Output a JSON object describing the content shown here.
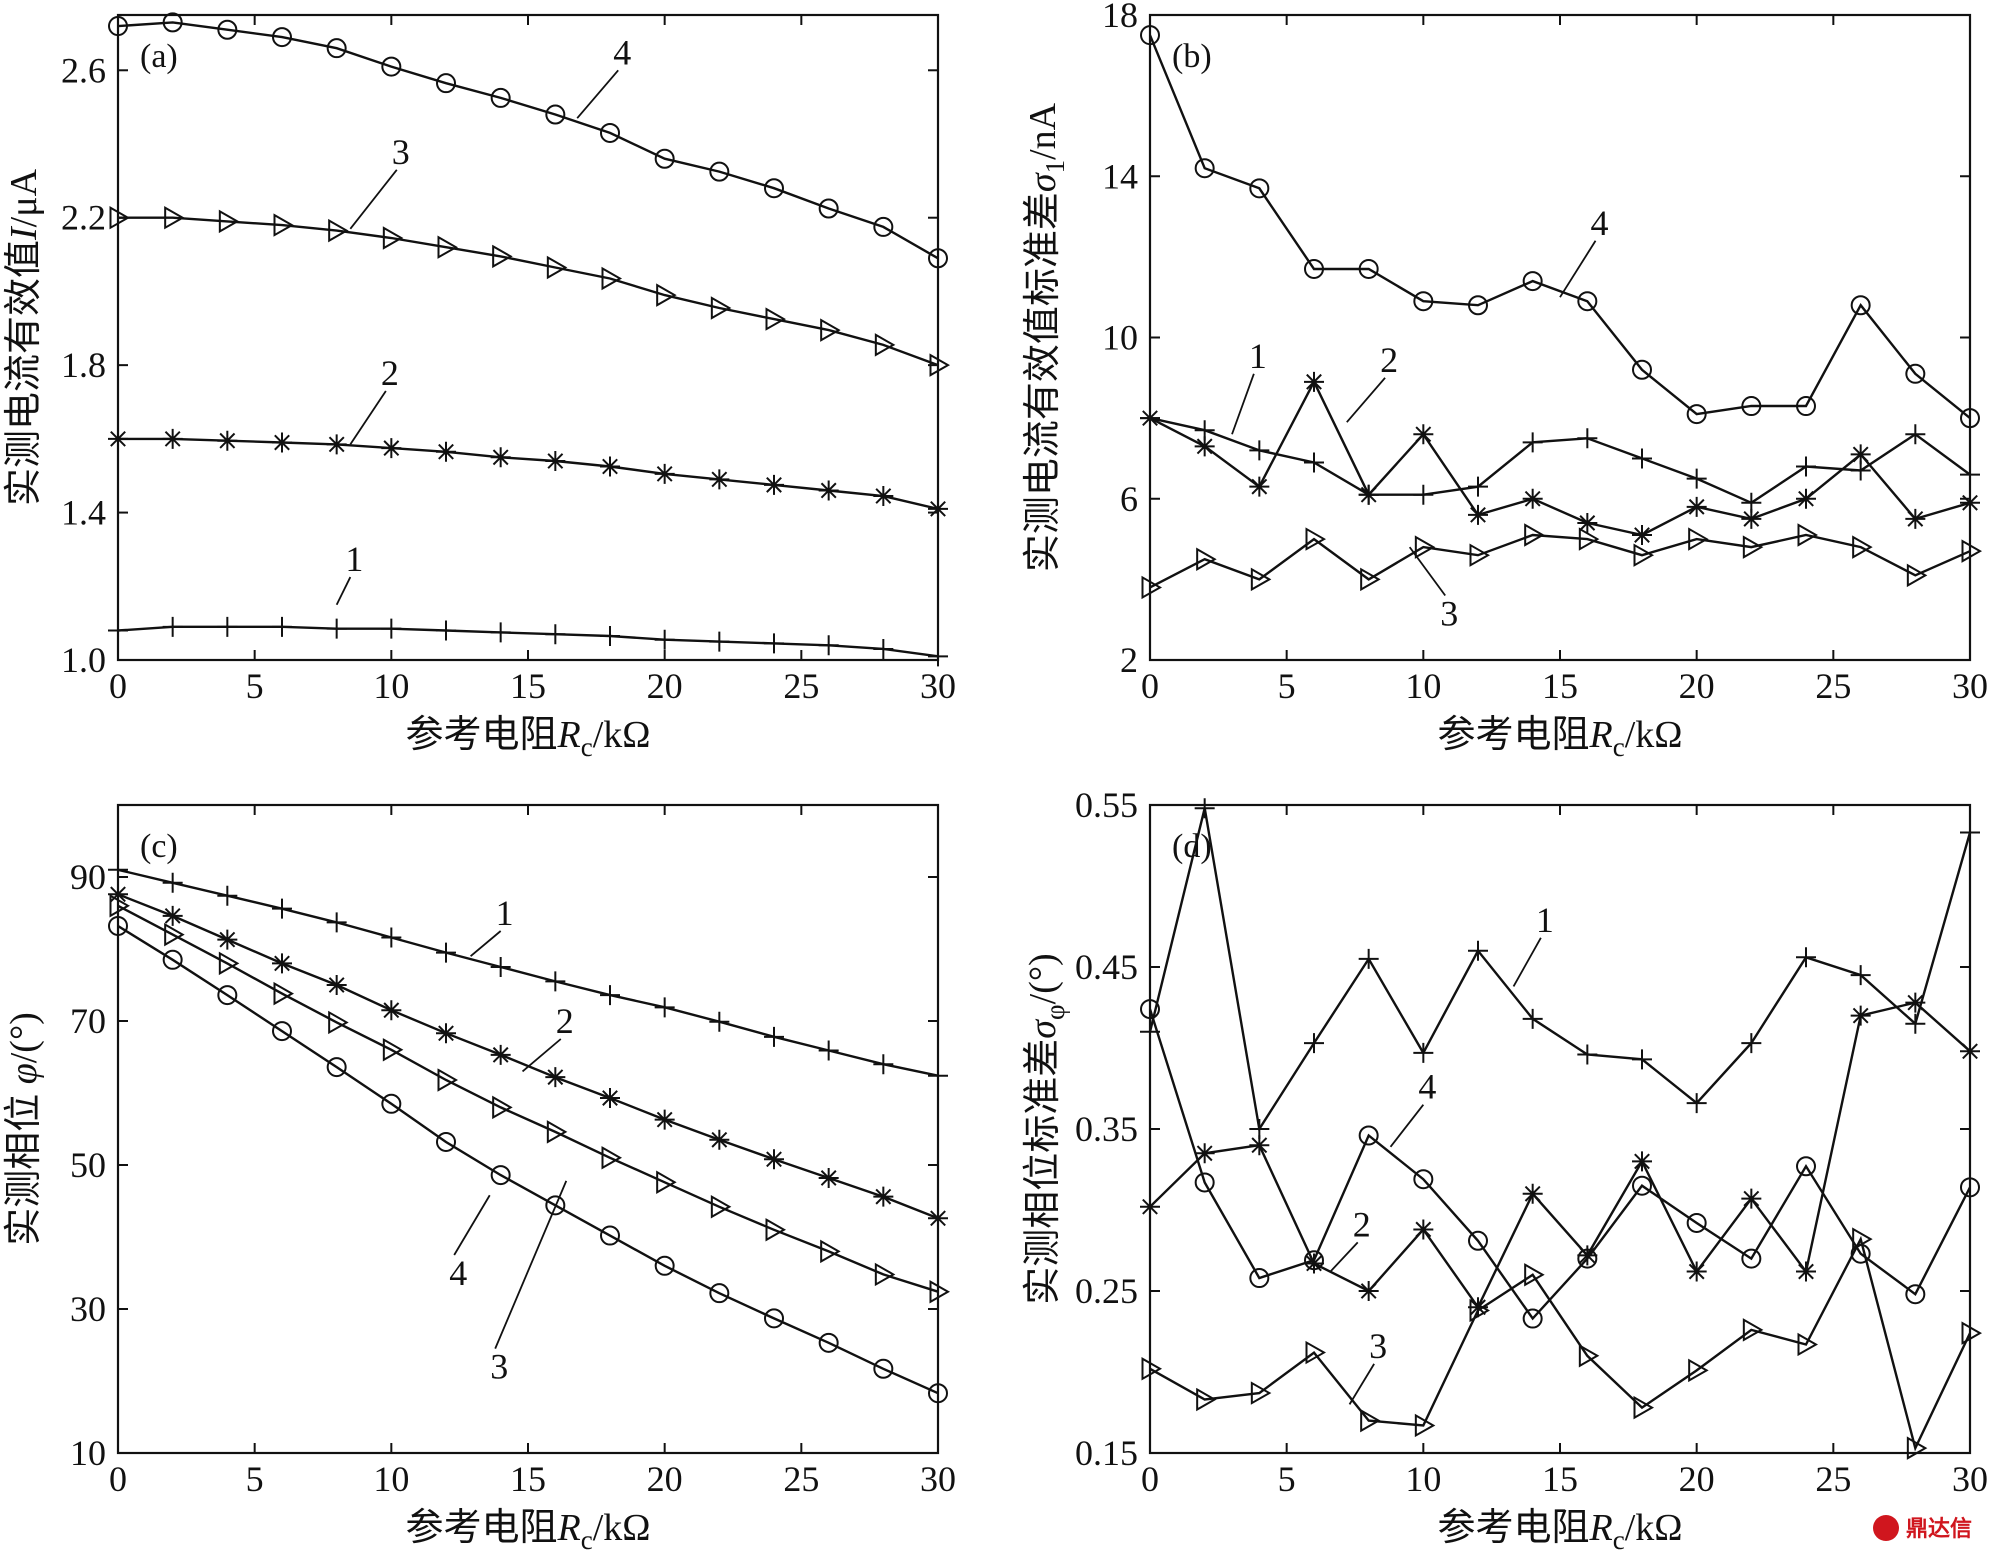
{
  "chart_data": [
    {
      "id": "a",
      "panel_tag": "(a)",
      "type": "line",
      "xlabel": "参考电阻R_c/kΩ",
      "xlabel_main": "参考电阻",
      "xlabel_sym": "R",
      "xlabel_sub": "c",
      "xlabel_unit": "/kΩ",
      "ylabel": "实测电流有效值I/μA",
      "ylabel_main": "实测电流有效值",
      "ylabel_sym": "I",
      "ylabel_sub": "",
      "ylabel_unit": "/μA",
      "xlim": [
        0,
        30
      ],
      "ylim": [
        1.0,
        2.75
      ],
      "xticks": [
        0,
        5,
        10,
        15,
        20,
        25,
        30
      ],
      "yticks": [
        1.0,
        1.4,
        1.8,
        2.2,
        2.6
      ],
      "ytick_labels": [
        "1.0",
        "1.4",
        "1.8",
        "2.2",
        "2.6"
      ],
      "x": [
        0,
        2,
        4,
        6,
        8,
        10,
        12,
        14,
        16,
        18,
        20,
        22,
        24,
        26,
        28,
        30
      ],
      "series": [
        {
          "name": "1",
          "marker": "plus",
          "values": [
            1.08,
            1.09,
            1.09,
            1.09,
            1.085,
            1.085,
            1.08,
            1.075,
            1.07,
            1.065,
            1.055,
            1.05,
            1.045,
            1.04,
            1.03,
            1.01
          ]
        },
        {
          "name": "2",
          "marker": "star",
          "values": [
            1.6,
            1.6,
            1.595,
            1.59,
            1.585,
            1.575,
            1.565,
            1.55,
            1.54,
            1.525,
            1.505,
            1.49,
            1.475,
            1.46,
            1.445,
            1.41
          ]
        },
        {
          "name": "3",
          "marker": "triangle",
          "values": [
            2.2,
            2.2,
            2.19,
            2.18,
            2.165,
            2.145,
            2.12,
            2.095,
            2.065,
            2.035,
            1.99,
            1.955,
            1.925,
            1.895,
            1.855,
            1.8
          ]
        },
        {
          "name": "4",
          "marker": "circle",
          "values": [
            2.72,
            2.73,
            2.71,
            2.69,
            2.66,
            2.61,
            2.565,
            2.525,
            2.48,
            2.43,
            2.36,
            2.325,
            2.28,
            2.225,
            2.175,
            2.09
          ]
        }
      ],
      "series_labels": [
        {
          "name": "1",
          "text": "1",
          "x": 8.0,
          "y": 1.15,
          "lx": 8.5,
          "ly": 1.225
        },
        {
          "name": "2",
          "text": "2",
          "x": 8.5,
          "y": 1.585,
          "lx": 9.8,
          "ly": 1.73
        },
        {
          "name": "3",
          "text": "3",
          "x": 8.5,
          "y": 2.17,
          "lx": 10.2,
          "ly": 2.33
        },
        {
          "name": "4",
          "text": "4",
          "x": 16.8,
          "y": 2.47,
          "lx": 18.3,
          "ly": 2.6
        }
      ]
    },
    {
      "id": "b",
      "panel_tag": "(b)",
      "type": "line",
      "xlabel": "参考电阻R_c/kΩ",
      "xlabel_main": "参考电阻",
      "xlabel_sym": "R",
      "xlabel_sub": "c",
      "xlabel_unit": "/kΩ",
      "ylabel": "实测电流有效值标准差σ_1/nA",
      "ylabel_main": "实测电流有效值标准差",
      "ylabel_sym": "σ",
      "ylabel_sub": "1",
      "ylabel_unit": "/nA",
      "xlim": [
        0,
        30
      ],
      "ylim": [
        2,
        18
      ],
      "xticks": [
        0,
        5,
        10,
        15,
        20,
        25,
        30
      ],
      "yticks": [
        2,
        6,
        10,
        14,
        18
      ],
      "ytick_labels": [
        "2",
        "6",
        "10",
        "14",
        "18"
      ],
      "x": [
        0,
        2,
        4,
        6,
        8,
        10,
        12,
        14,
        16,
        18,
        20,
        22,
        24,
        26,
        28,
        30
      ],
      "series": [
        {
          "name": "1",
          "marker": "plus",
          "values": [
            8.0,
            7.7,
            7.2,
            6.9,
            6.1,
            6.1,
            6.3,
            7.4,
            7.5,
            7.0,
            6.5,
            5.9,
            6.8,
            6.7,
            7.6,
            6.6
          ]
        },
        {
          "name": "2",
          "marker": "star",
          "values": [
            8.0,
            7.3,
            6.3,
            8.9,
            6.1,
            7.6,
            5.6,
            6.0,
            5.4,
            5.1,
            5.8,
            5.5,
            6.0,
            7.1,
            5.5,
            5.9
          ]
        },
        {
          "name": "3",
          "marker": "triangle",
          "values": [
            3.8,
            4.5,
            4.0,
            5.0,
            4.0,
            4.8,
            4.6,
            5.1,
            5.0,
            4.6,
            5.0,
            4.8,
            5.1,
            4.8,
            4.1,
            4.7
          ]
        },
        {
          "name": "4",
          "marker": "circle",
          "values": [
            17.5,
            14.2,
            13.7,
            11.7,
            11.7,
            10.9,
            10.8,
            11.4,
            10.9,
            9.2,
            8.1,
            8.3,
            8.3,
            10.8,
            9.1,
            8.0
          ]
        }
      ],
      "series_labels": [
        {
          "name": "1",
          "text": "1",
          "x": 3.0,
          "y": 7.6,
          "lx": 3.8,
          "ly": 9.1
        },
        {
          "name": "2",
          "text": "2",
          "x": 7.2,
          "y": 7.9,
          "lx": 8.6,
          "ly": 9.0
        },
        {
          "name": "3",
          "text": "3",
          "x": 9.5,
          "y": 4.8,
          "lx": 10.8,
          "ly": 3.6
        },
        {
          "name": "4",
          "text": "4",
          "x": 15.0,
          "y": 11.0,
          "lx": 16.3,
          "ly": 12.4
        }
      ]
    },
    {
      "id": "c",
      "panel_tag": "(c)",
      "type": "line",
      "xlabel": "参考电阻R_c/kΩ",
      "xlabel_main": "参考电阻",
      "xlabel_sym": "R",
      "xlabel_sub": "c",
      "xlabel_unit": "/kΩ",
      "ylabel": "实测相位 φ/(°)",
      "ylabel_main": "实测相位 ",
      "ylabel_sym": "φ",
      "ylabel_sub": "",
      "ylabel_unit": "/(°)",
      "xlim": [
        0,
        30
      ],
      "ylim": [
        10,
        100
      ],
      "xticks": [
        0,
        5,
        10,
        15,
        20,
        25,
        30
      ],
      "yticks": [
        10,
        30,
        50,
        70,
        90
      ],
      "ytick_labels": [
        "10",
        "30",
        "50",
        "70",
        "90"
      ],
      "x": [
        0,
        2,
        4,
        6,
        8,
        10,
        12,
        14,
        16,
        18,
        20,
        22,
        24,
        26,
        28,
        30
      ],
      "series": [
        {
          "name": "1",
          "marker": "plus",
          "values": [
            91.0,
            89.2,
            87.4,
            85.6,
            83.7,
            81.6,
            79.5,
            77.5,
            75.5,
            73.6,
            71.9,
            69.9,
            67.8,
            65.9,
            64.0,
            62.4
          ]
        },
        {
          "name": "2",
          "marker": "star",
          "values": [
            87.6,
            84.6,
            81.3,
            78.0,
            75.0,
            71.5,
            68.3,
            65.3,
            62.2,
            59.3,
            56.3,
            53.5,
            50.8,
            48.2,
            45.6,
            42.6
          ]
        },
        {
          "name": "3",
          "marker": "triangle",
          "values": [
            86.0,
            82.0,
            78.0,
            73.8,
            69.8,
            66.0,
            61.8,
            58.0,
            54.6,
            51.0,
            47.6,
            44.2,
            41.0,
            38.0,
            34.8,
            32.4
          ]
        },
        {
          "name": "4",
          "marker": "circle",
          "values": [
            83.2,
            78.5,
            73.6,
            68.6,
            63.6,
            58.5,
            53.2,
            48.6,
            44.4,
            40.2,
            36.0,
            32.2,
            28.7,
            25.3,
            21.7,
            18.3
          ]
        }
      ],
      "series_labels": [
        {
          "name": "1",
          "text": "1",
          "x": 12.9,
          "y": 79.0,
          "lx": 14.0,
          "ly": 82.5
        },
        {
          "name": "2",
          "text": "2",
          "x": 14.8,
          "y": 63.0,
          "lx": 16.2,
          "ly": 67.5
        },
        {
          "name": "3",
          "text": "3",
          "x": 16.4,
          "y": 47.8,
          "lx": 13.8,
          "ly": 24.5
        },
        {
          "name": "4",
          "text": "4",
          "x": 13.6,
          "y": 45.8,
          "lx": 12.3,
          "ly": 37.5
        }
      ]
    },
    {
      "id": "d",
      "panel_tag": "(d)",
      "type": "line",
      "xlabel": "参考电阻R_c/kΩ",
      "xlabel_main": "参考电阻",
      "xlabel_sym": "R",
      "xlabel_sub": "c",
      "xlabel_unit": "/kΩ",
      "ylabel": "实测相位标准差σ_φ/(°)",
      "ylabel_main": "实测相位标准差",
      "ylabel_sym": "σ",
      "ylabel_sub": "φ",
      "ylabel_unit": "/(°)",
      "xlim": [
        0,
        30
      ],
      "ylim": [
        0.15,
        0.55
      ],
      "xticks": [
        0,
        5,
        10,
        15,
        20,
        25,
        30
      ],
      "yticks": [
        0.15,
        0.25,
        0.35,
        0.45,
        0.55
      ],
      "ytick_labels": [
        "0.15",
        "0.25",
        "0.35",
        "0.45",
        "0.55"
      ],
      "x": [
        0,
        2,
        4,
        6,
        8,
        10,
        12,
        14,
        16,
        18,
        20,
        22,
        24,
        26,
        28,
        30
      ],
      "series": [
        {
          "name": "1",
          "marker": "plus",
          "values": [
            0.41,
            0.548,
            0.35,
            0.403,
            0.455,
            0.397,
            0.46,
            0.418,
            0.396,
            0.393,
            0.366,
            0.403,
            0.456,
            0.445,
            0.415,
            0.533
          ]
        },
        {
          "name": "2",
          "marker": "star",
          "values": [
            0.302,
            0.335,
            0.34,
            0.267,
            0.25,
            0.288,
            0.24,
            0.31,
            0.272,
            0.33,
            0.262,
            0.307,
            0.262,
            0.42,
            0.428,
            0.398
          ]
        },
        {
          "name": "3",
          "marker": "triangle",
          "values": [
            0.202,
            0.183,
            0.187,
            0.212,
            0.17,
            0.167,
            0.238,
            0.26,
            0.21,
            0.178,
            0.201,
            0.226,
            0.217,
            0.282,
            0.153,
            0.224
          ]
        },
        {
          "name": "4",
          "marker": "circle",
          "values": [
            0.424,
            0.317,
            0.258,
            0.269,
            0.346,
            0.319,
            0.281,
            0.233,
            0.27,
            0.315,
            0.292,
            0.27,
            0.327,
            0.273,
            0.248,
            0.314
          ]
        }
      ],
      "series_labels": [
        {
          "name": "1",
          "text": "1",
          "x": 13.3,
          "y": 0.438,
          "lx": 14.3,
          "ly": 0.468
        },
        {
          "name": "2",
          "text": "2",
          "x": 6.6,
          "y": 0.262,
          "lx": 7.6,
          "ly": 0.28
        },
        {
          "name": "3",
          "text": "3",
          "x": 7.3,
          "y": 0.18,
          "lx": 8.2,
          "ly": 0.205
        },
        {
          "name": "4",
          "text": "4",
          "x": 8.8,
          "y": 0.339,
          "lx": 10.0,
          "ly": 0.365
        }
      ]
    }
  ],
  "watermark": {
    "icon": "logo-icon",
    "text": "鼎达信"
  }
}
